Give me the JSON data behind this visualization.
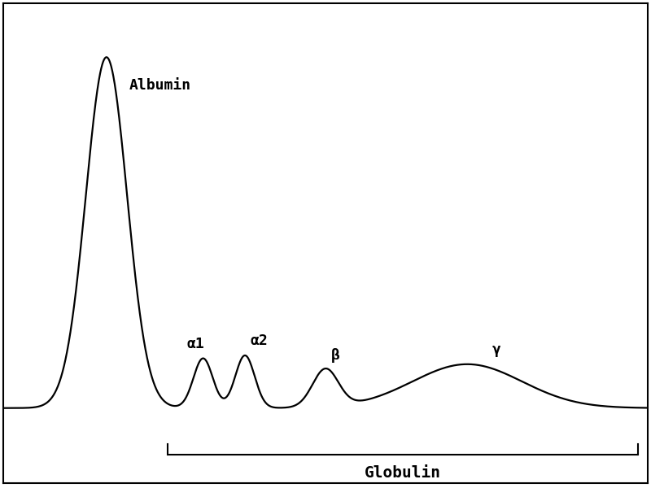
{
  "background_color": "#ffffff",
  "plot_bg_color": "#ffffff",
  "line_color": "#000000",
  "line_width": 1.6,
  "albumin_label": "Albumin",
  "alpha1_label": "α1",
  "alpha2_label": "α2",
  "beta_label": "β",
  "gamma_label": "γ",
  "globulin_label": "Globulin",
  "label_fontsize": 13,
  "globulin_fontsize": 14,
  "albumin_peak_x": 1.6,
  "albumin_peak_sigma": 0.32,
  "albumin_peak_amp": 6.0,
  "alpha1_x": 3.1,
  "alpha1_sigma": 0.15,
  "alpha1_amp": 0.85,
  "alpha2_x": 3.75,
  "alpha2_sigma": 0.15,
  "alpha2_amp": 0.9,
  "beta_x": 5.0,
  "beta_sigma": 0.2,
  "beta_amp": 0.65,
  "gamma_x": 7.2,
  "gamma_sigma": 0.85,
  "gamma_amp": 0.75,
  "bracket_x_start": 2.55,
  "bracket_x_end": 9.85,
  "xlim": [
    0,
    10
  ],
  "ylim": [
    -1.2,
    7.0
  ]
}
